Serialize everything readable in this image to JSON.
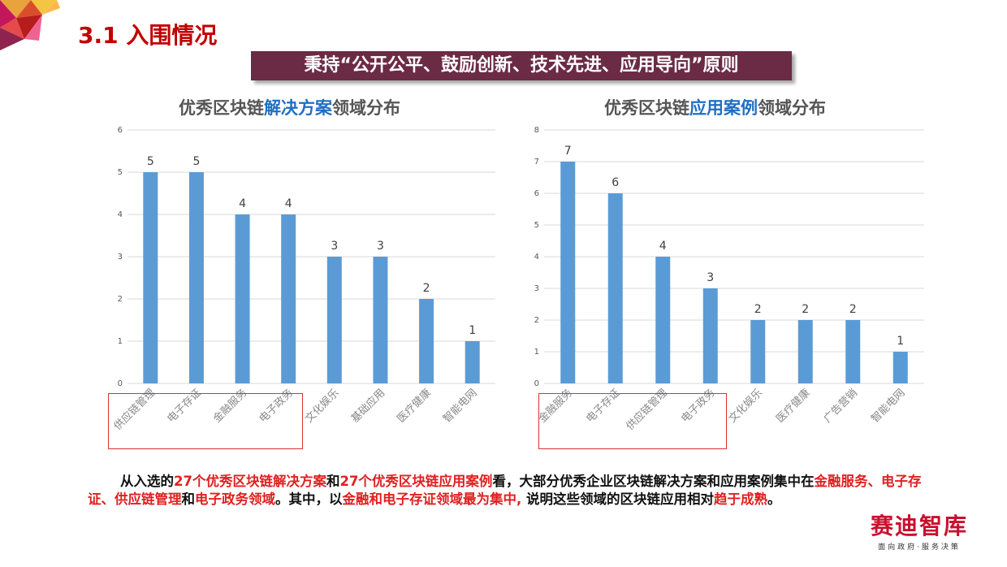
{
  "header": {
    "title": "3.1 入围情况",
    "banner": "秉持“公开公平、鼓励创新、技术先进、应用导向”原则"
  },
  "colors": {
    "bar": "#5b9bd5",
    "accent_red": "#e02020",
    "banner_bg": "#6b2b44",
    "title_red": "#c00000",
    "highlight_blue": "#1f6fc4"
  },
  "chart_data": [
    {
      "type": "bar",
      "title_pre": "优秀区块链",
      "title_hl": "解决方案",
      "title_post": "领域分布",
      "categories": [
        "供应链管理",
        "电子存证",
        "金融服务",
        "电子政务",
        "文化娱乐",
        "基础应用",
        "医疗健康",
        "智能电网"
      ],
      "values": [
        5,
        5,
        4,
        4,
        3,
        3,
        2,
        1
      ],
      "ylim": [
        0,
        6
      ],
      "yticks": [
        "0",
        "1",
        "2",
        "3",
        "4",
        "5",
        "6"
      ],
      "grid": true,
      "highlighted_categories": 4
    },
    {
      "type": "bar",
      "title_pre": "优秀区块链",
      "title_hl": "应用案例",
      "title_post": "领域分布",
      "categories": [
        "金融服务",
        "电子存证",
        "供应链管理",
        "电子政务",
        "文化娱乐",
        "医疗健康",
        "广告营销",
        "智能电网"
      ],
      "values": [
        7,
        6,
        4,
        3,
        2,
        2,
        2,
        1
      ],
      "ylim": [
        0,
        8
      ],
      "yticks": [
        "0",
        "1",
        "2",
        "3",
        "4",
        "5",
        "6",
        "7",
        "8"
      ],
      "grid": true,
      "highlighted_categories": 4
    }
  ],
  "summary": {
    "s1": "从入选的",
    "s2": "27个优秀区块链解决方案",
    "s3": "和",
    "s4": "27个优秀区块链应用案例",
    "s5": "看，大部分优秀企业区块链解决方案和应用案例集中在",
    "s6": "金融服务、电子存证、供应链管理",
    "s7": "和",
    "s8": "电子政务领域",
    "s9": "。其中，以",
    "s10": "金融和电子存证领域最为集中,",
    "s11": " 说明这些领域的区块链应用相对",
    "s12": "趋于成熟",
    "s13": "。"
  },
  "logo": {
    "name": "赛迪智库",
    "slogan": "面向政府·服务决策"
  }
}
